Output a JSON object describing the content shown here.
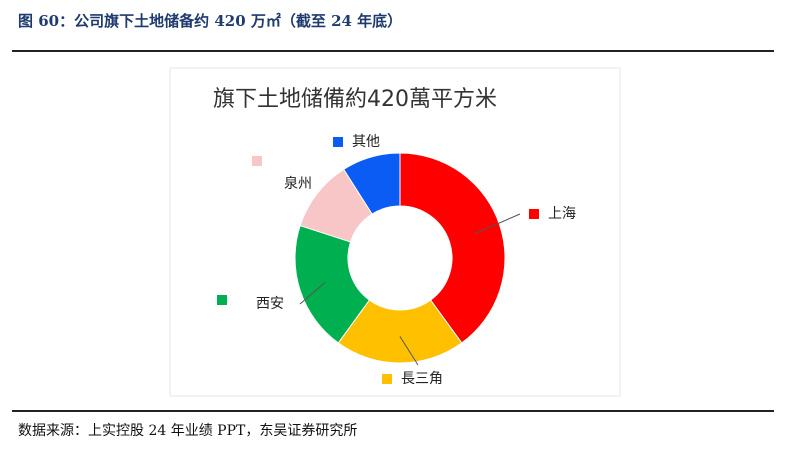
{
  "header": {
    "title": "图 60：公司旗下土地储备约 420 万㎡（截至 24 年底）"
  },
  "footer": {
    "source": "数据来源：上实控股 24 年业绩 PPT，东吴证券研究所"
  },
  "chart_data": {
    "type": "donut",
    "title": "旗下土地储備約420萬平方米",
    "categories": [
      "上海",
      "長三角",
      "西安",
      "泉州",
      "其他"
    ],
    "values": [
      40,
      20,
      20,
      11,
      9
    ],
    "colors": [
      "#ff0000",
      "#ffc000",
      "#00b050",
      "#f8c6c6",
      "#0a5cf5"
    ]
  }
}
